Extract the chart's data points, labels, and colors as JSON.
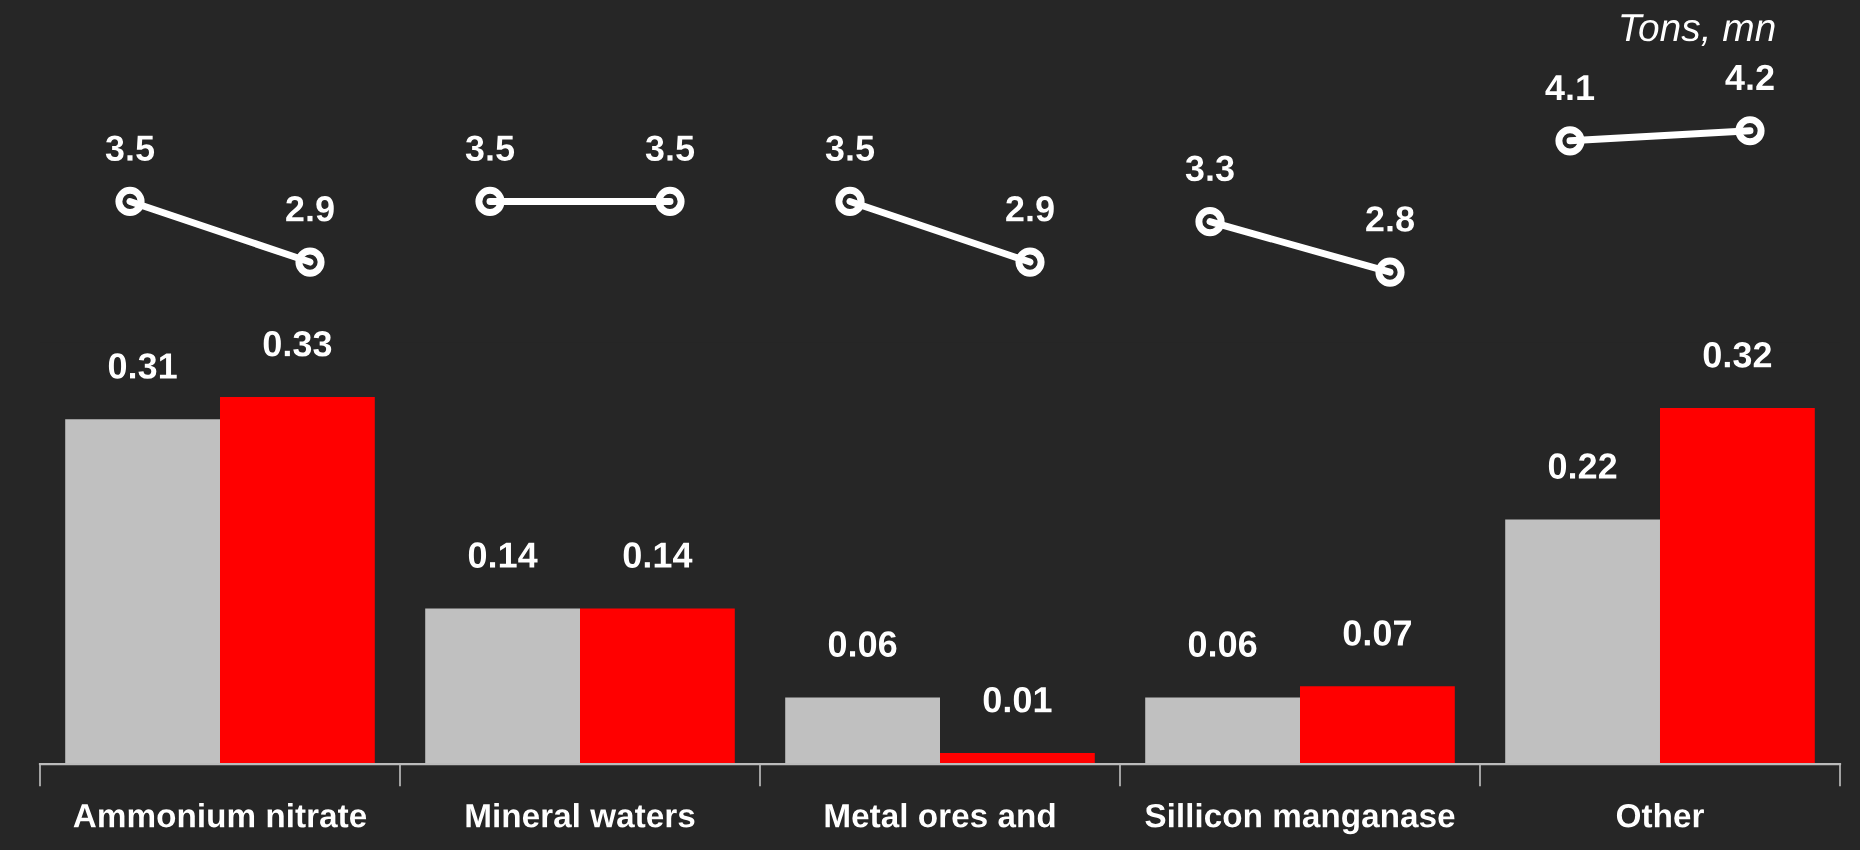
{
  "chart_data": [
    {
      "type": "line",
      "categories": [
        null,
        null,
        null,
        null,
        null,
        null,
        null,
        null,
        null,
        null
      ],
      "tick_labels": false,
      "data_labels": true,
      "marker": "circle",
      "grid": false,
      "legend": false,
      "series": [
        {
          "color": "#ffffff",
          "values": [
            3.5,
            2.9,
            null,
            null,
            null,
            null,
            null,
            null,
            null,
            null
          ]
        },
        {
          "color": "#ffffff",
          "values": [
            null,
            null,
            3.5,
            3.5,
            null,
            null,
            null,
            null,
            null,
            null
          ]
        },
        {
          "color": "#ffffff",
          "values": [
            null,
            null,
            null,
            null,
            3.5,
            2.9,
            null,
            null,
            null,
            null
          ]
        },
        {
          "color": "#ffffff",
          "values": [
            null,
            null,
            null,
            null,
            null,
            null,
            3.3,
            2.8,
            null,
            null
          ]
        },
        {
          "color": "#ffffff",
          "values": [
            null,
            null,
            null,
            null,
            null,
            null,
            null,
            null,
            4.1,
            4.2
          ]
        }
      ],
      "annotations": [
        "Tons, mn"
      ]
    },
    {
      "type": "bar",
      "categories": [
        "Ammonium nitrate",
        "Mineral waters",
        "Metal ores and",
        "Sillicon manganase",
        "Other"
      ],
      "tick_labels": "x",
      "data_labels": true,
      "grid": false,
      "legend": false,
      "series": [
        {
          "color": "#c0c0c0",
          "values": [
            0.31,
            0.14,
            0.06,
            0.06,
            0.22
          ]
        },
        {
          "color": "#ff0000",
          "values": [
            0.33,
            0.14,
            0.01,
            0.07,
            0.32
          ]
        }
      ]
    }
  ]
}
